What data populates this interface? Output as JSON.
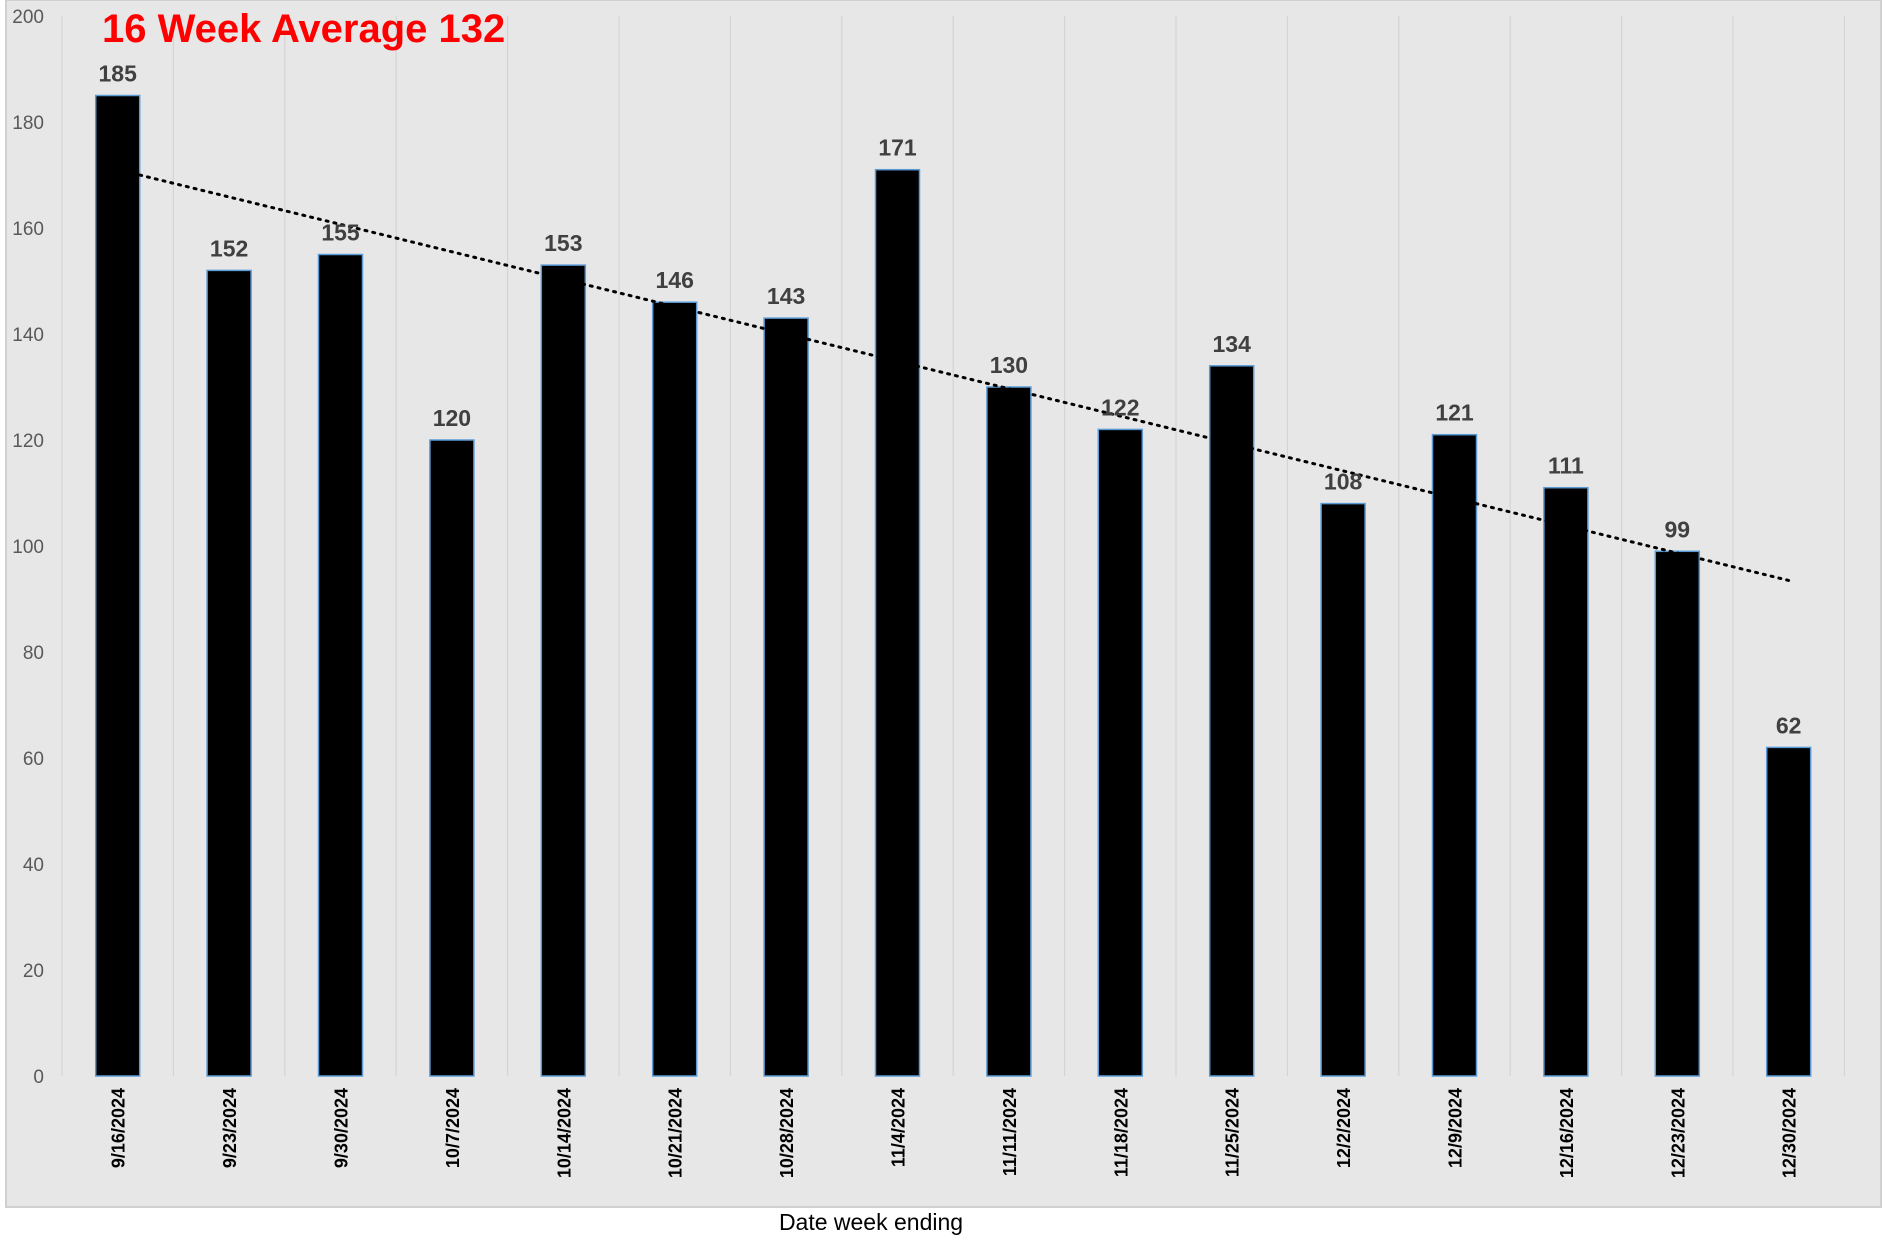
{
  "chart_data": {
    "type": "bar",
    "title": "16 Week Average 132",
    "xlabel": "Date week ending",
    "ylabel": "",
    "ylim": [
      0,
      200
    ],
    "yticks": [
      0,
      20,
      40,
      60,
      80,
      100,
      120,
      140,
      160,
      180,
      200
    ],
    "categories": [
      "9/16/2024",
      "9/23/2024",
      "9/30/2024",
      "10/7/2024",
      "10/14/2024",
      "10/21/2024",
      "10/28/2024",
      "11/4/2024",
      "11/11/2024",
      "11/18/2024",
      "11/25/2024",
      "12/2/2024",
      "12/9/2024",
      "12/16/2024",
      "12/23/2024",
      "12/30/2024"
    ],
    "values": [
      185,
      152,
      155,
      120,
      153,
      146,
      143,
      171,
      130,
      122,
      134,
      108,
      121,
      111,
      99,
      62
    ],
    "trendline": {
      "type": "linear",
      "style": "dotted",
      "start_value": 170,
      "end_value": 93.5
    },
    "grid": "vertical",
    "colors": {
      "bar_fill": "#000000",
      "bar_edge": "#5b9bd5",
      "plot_bg": "#e7e7e7",
      "title": "#ff0000",
      "data_label": "#404040",
      "axis_text": "#595959",
      "gridline": "#d4d4d4"
    }
  }
}
